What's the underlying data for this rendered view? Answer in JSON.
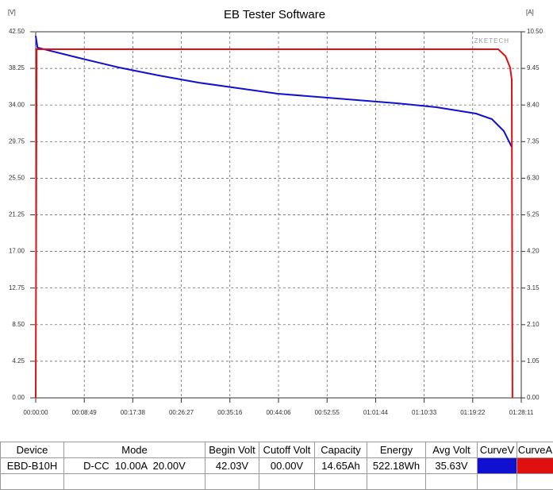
{
  "chart_data": {
    "type": "line",
    "title": "EB Tester Software",
    "y_label": "[V]",
    "y2_label": "[A]",
    "annotation": "ZKETECH",
    "xlim": [
      0,
      5291
    ],
    "xticks": [
      {
        "value": 0,
        "label": "00:00:00"
      },
      {
        "value": 529,
        "label": "00:08:49"
      },
      {
        "value": 1058,
        "label": "00:17:38"
      },
      {
        "value": 1587,
        "label": "00:26:27"
      },
      {
        "value": 2116,
        "label": "00:35:16"
      },
      {
        "value": 2646,
        "label": "00:44:06"
      },
      {
        "value": 3175,
        "label": "00:52:55"
      },
      {
        "value": 3704,
        "label": "01:01:44"
      },
      {
        "value": 4233,
        "label": "01:10:33"
      },
      {
        "value": 4762,
        "label": "01:19:22"
      },
      {
        "value": 5291,
        "label": "01:28:11"
      }
    ],
    "ylim": [
      0,
      42.5
    ],
    "yticks": [
      {
        "value": 0,
        "label": "0.00"
      },
      {
        "value": 4.25,
        "label": "4.25"
      },
      {
        "value": 8.5,
        "label": "8.50"
      },
      {
        "value": 12.75,
        "label": "12.75"
      },
      {
        "value": 17,
        "label": "17.00"
      },
      {
        "value": 21.25,
        "label": "21.25"
      },
      {
        "value": 25.5,
        "label": "25.50"
      },
      {
        "value": 29.75,
        "label": "29.75"
      },
      {
        "value": 34,
        "label": "34.00"
      },
      {
        "value": 38.25,
        "label": "38.25"
      },
      {
        "value": 42.5,
        "label": "42.50"
      }
    ],
    "y2lim": [
      0,
      10.5
    ],
    "y2ticks": [
      {
        "value": 0,
        "label": "0.00"
      },
      {
        "value": 1.05,
        "label": "1.05"
      },
      {
        "value": 2.1,
        "label": "2.10"
      },
      {
        "value": 3.15,
        "label": "3.15"
      },
      {
        "value": 4.2,
        "label": "4.20"
      },
      {
        "value": 5.25,
        "label": "5.25"
      },
      {
        "value": 6.3,
        "label": "6.30"
      },
      {
        "value": 7.35,
        "label": "7.35"
      },
      {
        "value": 8.4,
        "label": "8.40"
      },
      {
        "value": 9.45,
        "label": "9.45"
      },
      {
        "value": 10.5,
        "label": "10.50"
      }
    ],
    "grid": true,
    "series": [
      {
        "color": "#1010d0",
        "x": [
          0,
          20,
          475,
          908,
          1340,
          1772,
          2205,
          2637,
          3069,
          3501,
          3934,
          4366,
          4798,
          4971,
          5101,
          5187
        ],
        "values": [
          42.03,
          40.66,
          39.46,
          38.35,
          37.43,
          36.6,
          35.95,
          35.31,
          34.94,
          34.57,
          34.2,
          33.74,
          33.0,
          32.36,
          30.98,
          29.13
        ]
      },
      {
        "color": "#e01010",
        "axis": "y2",
        "x": [
          0,
          10,
          5040,
          5120,
          5170,
          5187,
          5195
        ],
        "values": [
          0,
          10.0,
          10.0,
          9.8,
          9.47,
          9.13,
          0
        ]
      }
    ]
  },
  "table": {
    "headers": [
      "Device",
      "Mode",
      "Begin Volt",
      "Cutoff Volt",
      "Capacity",
      "Energy",
      "Avg Volt",
      "CurveV",
      "CurveA"
    ],
    "rows": [
      [
        "EBD-B10H",
        "D-CC  10.00A  20.00V",
        "42.03V",
        "00.00V",
        "14.65Ah",
        "522.18Wh",
        "35.63V",
        "",
        ""
      ]
    ]
  }
}
